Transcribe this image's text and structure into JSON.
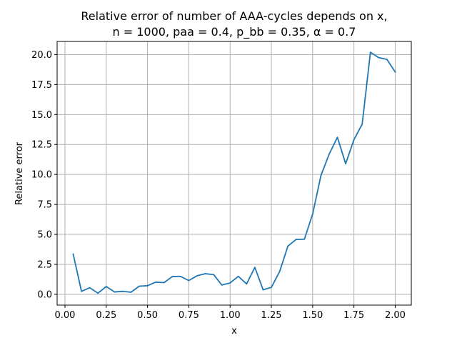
{
  "chart_data": {
    "type": "line",
    "title": "Relative error of number of AAA-cycles depends on x,",
    "subtitle": "n = 1000, paa = 0.4, p_bb = 0.35, α = 0.7",
    "xlabel": "x",
    "ylabel": "Relative error",
    "xlim": [
      -0.0475,
      2.0975
    ],
    "ylim": [
      -0.9,
      21.1
    ],
    "xticks": [
      0.0,
      0.25,
      0.5,
      0.75,
      1.0,
      1.25,
      1.5,
      1.75,
      2.0
    ],
    "xtick_labels": [
      "0.00",
      "0.25",
      "0.50",
      "0.75",
      "1.00",
      "1.25",
      "1.50",
      "1.75",
      "2.00"
    ],
    "yticks": [
      0.0,
      2.5,
      5.0,
      7.5,
      10.0,
      12.5,
      15.0,
      17.5,
      20.0
    ],
    "ytick_labels": [
      "0.0",
      "2.5",
      "5.0",
      "7.5",
      "10.0",
      "12.5",
      "15.0",
      "17.5",
      "20.0"
    ],
    "grid": true,
    "line_color": "#1f77b4",
    "series": [
      {
        "x": [
          0.05,
          0.1,
          0.15,
          0.2,
          0.25,
          0.3,
          0.35,
          0.4,
          0.45,
          0.5,
          0.55,
          0.6,
          0.65,
          0.7,
          0.75,
          0.8,
          0.85,
          0.9,
          0.95,
          1.0,
          1.05,
          1.1,
          1.15,
          1.2,
          1.25,
          1.3,
          1.35,
          1.4,
          1.45,
          1.5,
          1.55,
          1.6,
          1.65,
          1.7,
          1.75,
          1.8,
          1.85,
          1.9,
          1.95,
          2.0
        ],
        "values": [
          3.35,
          0.25,
          0.55,
          0.1,
          0.65,
          0.2,
          0.25,
          0.18,
          0.68,
          0.72,
          1.02,
          0.98,
          1.48,
          1.5,
          1.15,
          1.55,
          1.72,
          1.65,
          0.78,
          0.95,
          1.5,
          0.87,
          2.25,
          0.38,
          0.58,
          1.9,
          4.02,
          4.58,
          4.6,
          6.7,
          9.9,
          11.7,
          13.1,
          10.9,
          12.9,
          14.2,
          20.2,
          19.75,
          19.6,
          18.55
        ]
      }
    ]
  }
}
